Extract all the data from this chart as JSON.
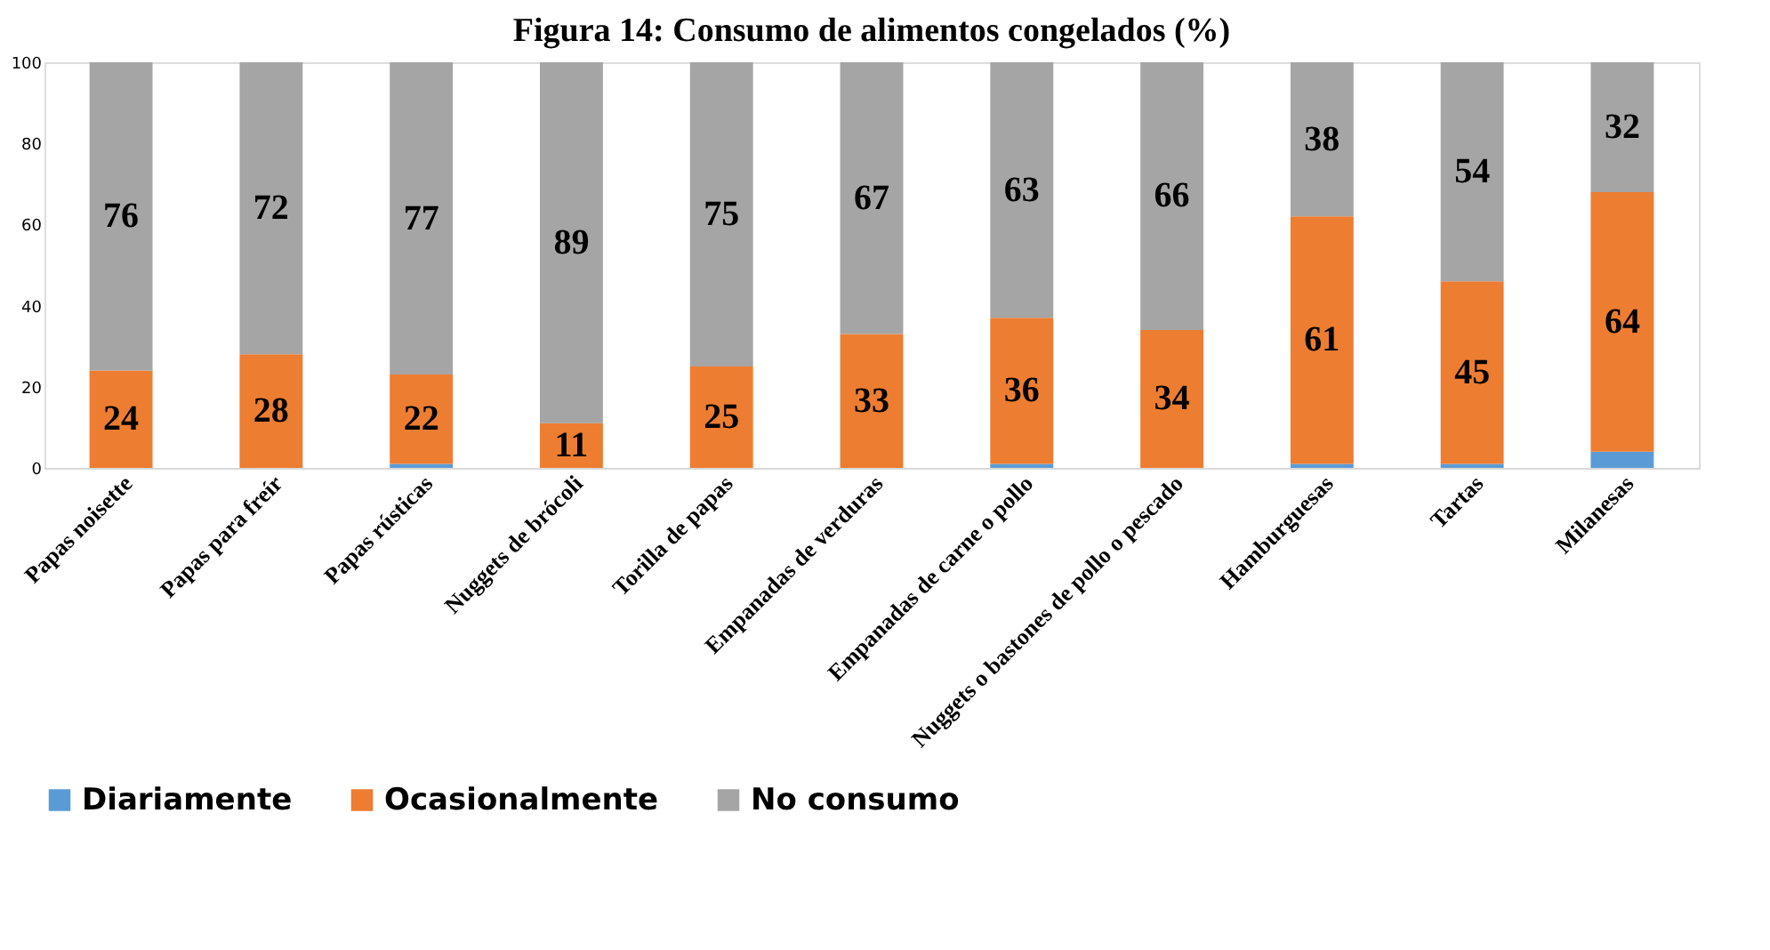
{
  "chart_data": {
    "type": "bar",
    "stacked": true,
    "title": "Figura 14: Consumo de alimentos congelados (%)",
    "categories": [
      "Papas noisette",
      "Papas para freír",
      "Papas rústicas",
      "Nuggets de brócoli",
      "Torilla de papas",
      "Empanadas de verduras",
      "Empanadas de carne o pollo",
      "Nuggets o bastones de pollo o pescado",
      "Hamburguesas",
      "Tartas",
      "Milanesas"
    ],
    "series": [
      {
        "name": "Diariamente",
        "color": "#5b9bd5",
        "values": [
          0,
          0,
          1,
          0,
          0,
          0,
          1,
          0,
          1,
          1,
          4
        ]
      },
      {
        "name": "Ocasionalmente",
        "color": "#ed7d31",
        "values": [
          24,
          28,
          22,
          11,
          25,
          33,
          36,
          34,
          61,
          45,
          64
        ],
        "value_labels": [
          "24",
          "28",
          "22",
          "11",
          "25",
          "33",
          "36",
          "34",
          "61",
          "45",
          "64"
        ]
      },
      {
        "name": "No consumo",
        "color": "#a5a5a5",
        "values": [
          76,
          72,
          77,
          89,
          75,
          67,
          63,
          66,
          38,
          54,
          32
        ],
        "value_labels": [
          "76",
          "72",
          "77",
          "89",
          "75",
          "67",
          "63",
          "66",
          "38",
          "54",
          "32"
        ]
      }
    ],
    "ylim": [
      0,
      100
    ],
    "yticks": [
      0,
      20,
      40,
      60,
      80,
      100
    ],
    "grid": false,
    "legend": "bottom"
  }
}
